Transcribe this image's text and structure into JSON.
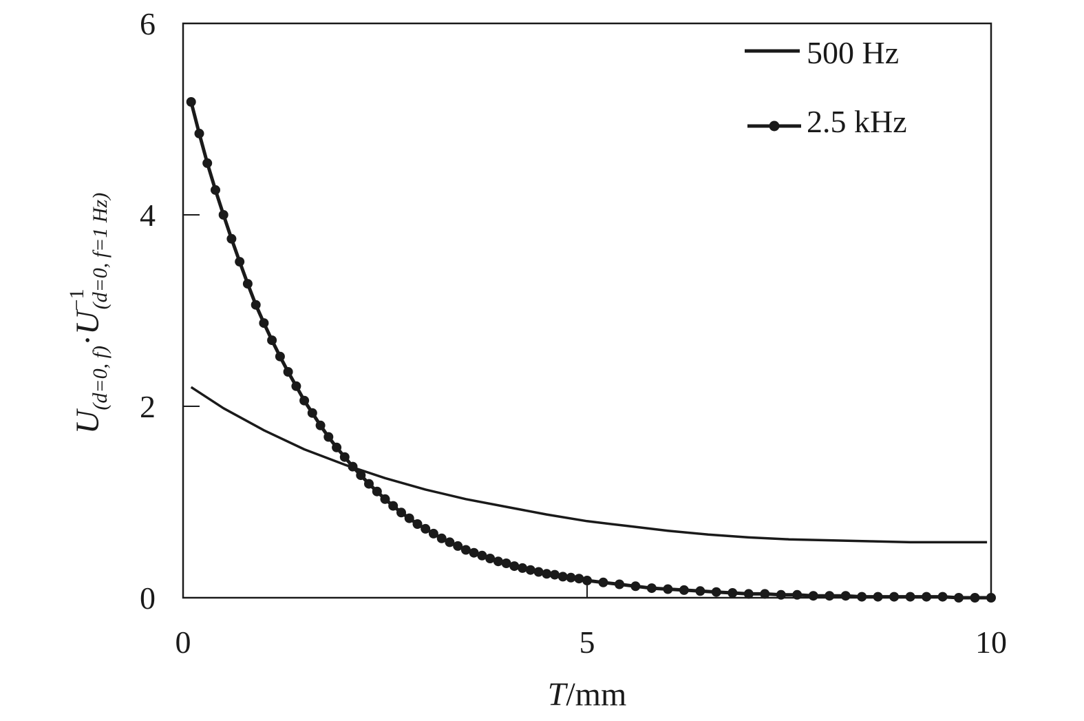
{
  "chart_data": {
    "type": "line",
    "xlabel": {
      "var": "T",
      "unit": "/mm"
    },
    "ylabel": {
      "U1": "U",
      "sub1": "(d=0, f)",
      "dot": "·",
      "U2": "U",
      "sub2": "(d=0, f=1 Hz)",
      "sup2": "−1"
    },
    "xlim": [
      0,
      10
    ],
    "ylim": [
      0,
      6
    ],
    "x_ticks": [
      0,
      5,
      10
    ],
    "x_tick_labels": [
      "0",
      "5",
      "10"
    ],
    "y_ticks": [
      0,
      2,
      4,
      6
    ],
    "y_tick_labels": [
      "0",
      "2",
      "4",
      "6"
    ],
    "grid": false,
    "legend_position": "top-right",
    "series": [
      {
        "name": "500 Hz",
        "marker": "none",
        "color": "#1a1a1a",
        "x": [
          0.1,
          0.5,
          1.0,
          1.5,
          2.0,
          2.5,
          3.0,
          3.5,
          4.0,
          4.5,
          5.0,
          5.5,
          6.0,
          6.5,
          7.0,
          7.5,
          8.0,
          8.5,
          9.0,
          9.5,
          9.95
        ],
        "y": [
          2.2,
          1.98,
          1.75,
          1.55,
          1.39,
          1.25,
          1.13,
          1.03,
          0.95,
          0.87,
          0.8,
          0.75,
          0.7,
          0.66,
          0.63,
          0.61,
          0.6,
          0.59,
          0.58,
          0.58,
          0.58
        ]
      },
      {
        "name": "2.5 kHz",
        "marker": "circle",
        "color": "#1a1a1a",
        "x": [
          0.1,
          0.2,
          0.3,
          0.4,
          0.5,
          0.6,
          0.7,
          0.8,
          0.9,
          1.0,
          1.1,
          1.2,
          1.3,
          1.4,
          1.5,
          1.6,
          1.7,
          1.8,
          1.9,
          2.0,
          2.1,
          2.2,
          2.3,
          2.4,
          2.5,
          2.6,
          2.7,
          2.8,
          2.9,
          3.0,
          3.1,
          3.2,
          3.3,
          3.4,
          3.5,
          3.6,
          3.7,
          3.8,
          3.9,
          4.0,
          4.1,
          4.2,
          4.3,
          4.4,
          4.5,
          4.6,
          4.7,
          4.8,
          4.9,
          5.0,
          5.2,
          5.4,
          5.6,
          5.8,
          6.0,
          6.2,
          6.4,
          6.6,
          6.8,
          7.0,
          7.2,
          7.4,
          7.6,
          7.8,
          8.0,
          8.2,
          8.4,
          8.6,
          8.8,
          9.0,
          9.2,
          9.4,
          9.6,
          9.8,
          10.0
        ],
        "y": [
          5.18,
          4.85,
          4.54,
          4.26,
          4.0,
          3.75,
          3.51,
          3.28,
          3.06,
          2.87,
          2.69,
          2.52,
          2.36,
          2.21,
          2.06,
          1.93,
          1.8,
          1.68,
          1.57,
          1.47,
          1.37,
          1.28,
          1.19,
          1.11,
          1.03,
          0.96,
          0.89,
          0.83,
          0.77,
          0.72,
          0.67,
          0.62,
          0.58,
          0.54,
          0.5,
          0.47,
          0.44,
          0.41,
          0.38,
          0.36,
          0.33,
          0.31,
          0.29,
          0.27,
          0.25,
          0.24,
          0.22,
          0.21,
          0.2,
          0.18,
          0.16,
          0.14,
          0.12,
          0.1,
          0.09,
          0.08,
          0.07,
          0.06,
          0.05,
          0.04,
          0.04,
          0.03,
          0.03,
          0.02,
          0.02,
          0.02,
          0.01,
          0.01,
          0.01,
          0.01,
          0.01,
          0.01,
          0.0,
          0.0,
          0.0
        ]
      }
    ]
  }
}
